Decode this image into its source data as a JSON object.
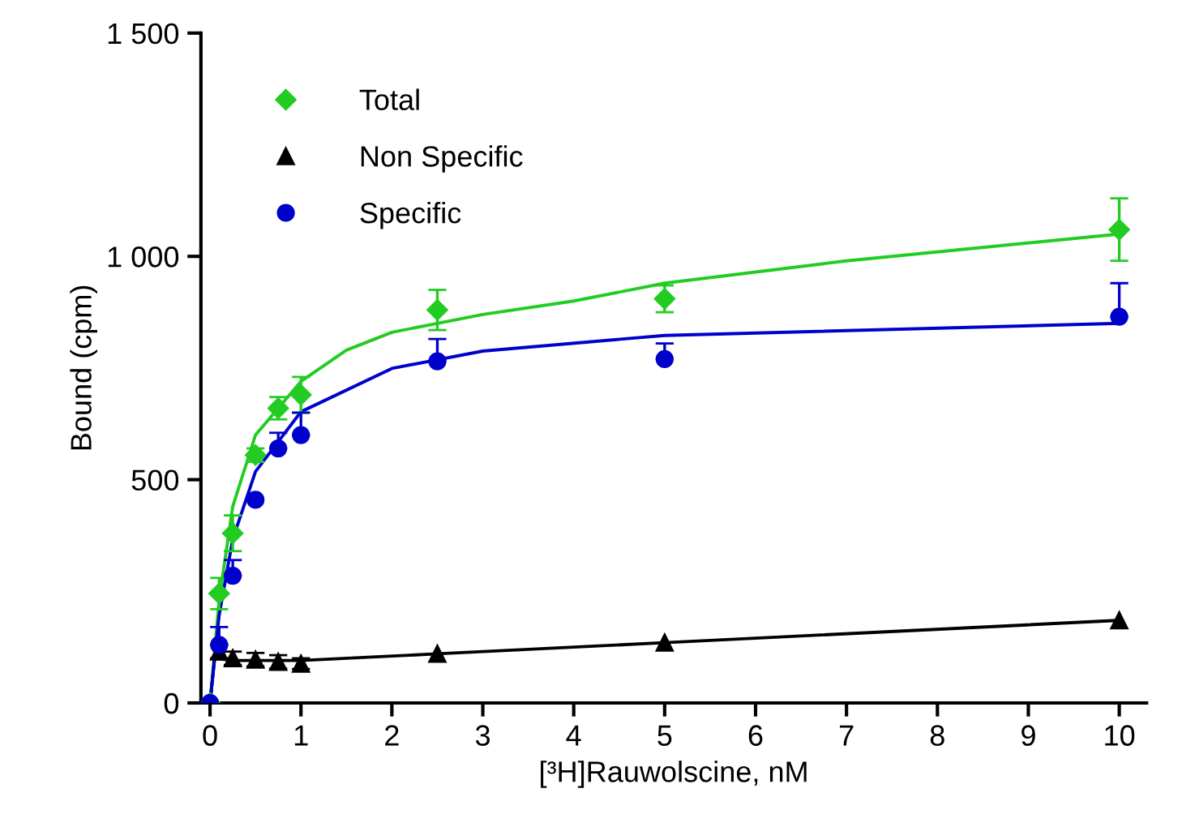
{
  "chart_data": {
    "type": "scatter",
    "xlabel": "[³H]Rauwolscine, nM",
    "ylabel": "Bound (cpm)",
    "xlim": [
      -0.1,
      10.3
    ],
    "ylim": [
      0,
      1500
    ],
    "xticks": [
      0,
      1,
      2,
      3,
      4,
      5,
      6,
      7,
      8,
      9,
      10
    ],
    "yticks": [
      0,
      500,
      {
        "value": 1000,
        "label": "1 000"
      },
      {
        "value": 1500,
        "label": "1 500"
      }
    ],
    "grid": false,
    "legend": "top left",
    "series": [
      {
        "name": "Total",
        "marker": "diamond",
        "color": "#22cc22",
        "x": [
          0,
          0.1,
          0.25,
          0.5,
          0.75,
          1,
          2.5,
          5,
          10
        ],
        "values": [
          0,
          245,
          380,
          555,
          660,
          690,
          880,
          905,
          1060
        ],
        "errors": [
          null,
          35,
          40,
          15,
          25,
          40,
          45,
          30,
          70
        ]
      },
      {
        "name": "Non Specific",
        "marker": "triangle",
        "color": "#000000",
        "x": [
          0.1,
          0.25,
          0.5,
          0.75,
          1,
          2.5,
          5,
          10
        ],
        "values": [
          115,
          100,
          97,
          92,
          88,
          110,
          135,
          185
        ],
        "errors": [
          15,
          15,
          15,
          15,
          12,
          null,
          null,
          null
        ]
      },
      {
        "name": "Specific",
        "marker": "circle",
        "color": "#0000cc",
        "x": [
          0,
          0.1,
          0.25,
          0.5,
          0.75,
          1,
          2.5,
          5,
          10
        ],
        "values": [
          0,
          130,
          285,
          455,
          570,
          600,
          765,
          770,
          865
        ],
        "errors": [
          null,
          [
            130,
            170
          ],
          [
            285,
            320
          ],
          null,
          [
            570,
            605
          ],
          [
            600,
            650
          ],
          [
            765,
            815
          ],
          [
            770,
            805
          ],
          [
            865,
            940
          ]
        ]
      },
      {
        "type": "line",
        "marker": "none",
        "color": "#22cc22",
        "x": [
          0,
          0.1,
          0.25,
          0.5,
          1,
          1.5,
          2,
          3,
          4,
          5,
          7,
          10
        ],
        "values": [
          0,
          230,
          440,
          600,
          720,
          790,
          830,
          870,
          900,
          940,
          990,
          1050
        ]
      },
      {
        "type": "line",
        "marker": "none",
        "color": "#000000",
        "x": [
          0,
          0.05,
          0.25,
          1,
          2.5,
          5,
          10
        ],
        "values": [
          0,
          100,
          95,
          95,
          110,
          135,
          185
        ]
      },
      {
        "type": "line",
        "marker": "none",
        "color": "#0000cc",
        "x": [
          0,
          0.1,
          0.25,
          0.5,
          1,
          2,
          3,
          5,
          10
        ],
        "values": [
          0,
          196,
          367,
          518,
          652,
          749,
          788,
          823,
          850
        ]
      }
    ]
  }
}
